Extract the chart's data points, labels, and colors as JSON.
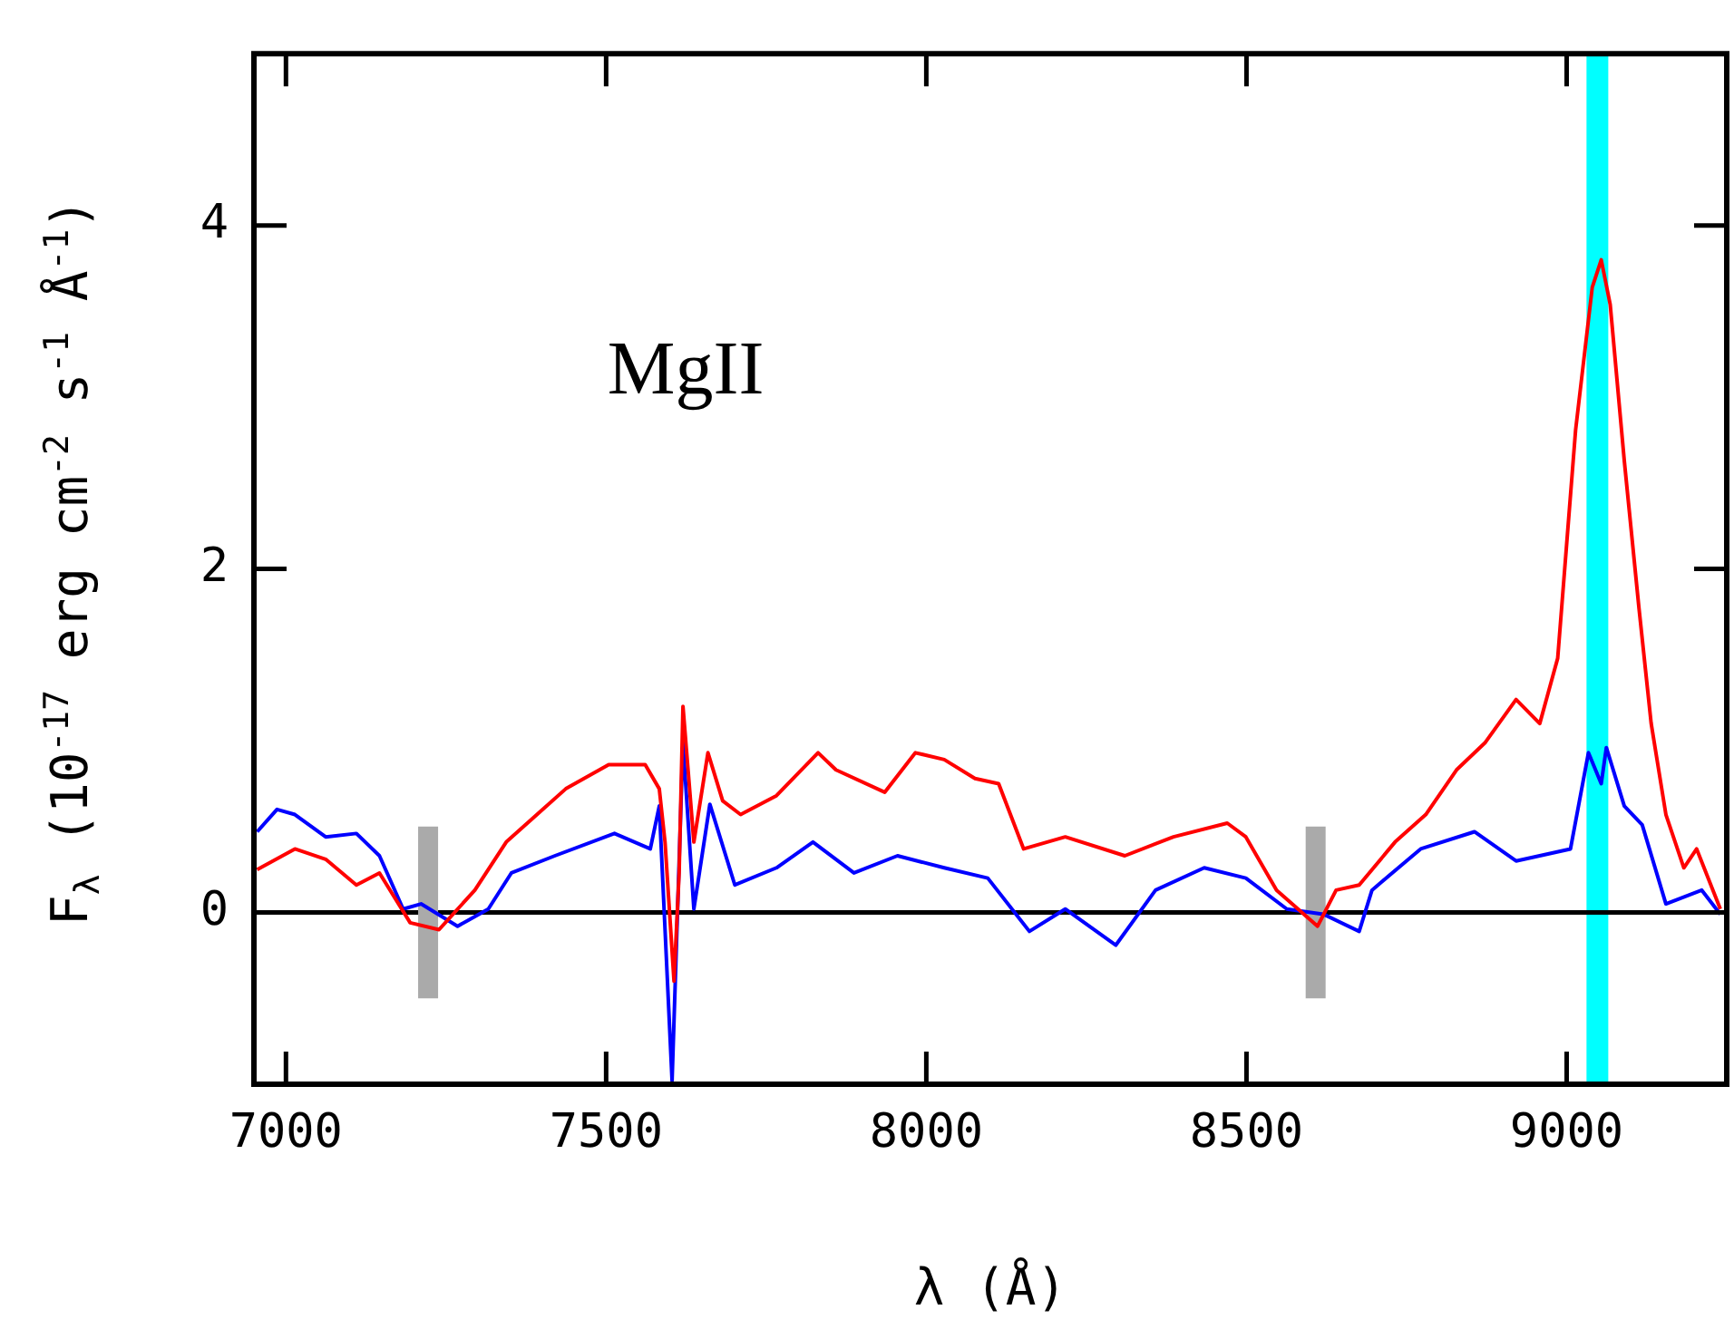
{
  "chart_data": {
    "type": "line",
    "xlabel": "λ (Å)",
    "ylabel": "F$_{λ}$ (10$^{-17}$ erg cm$^{-2}$ s$^{-1}$ Å$^{-1}$)",
    "xlim": [
      6950,
      9250
    ],
    "ylim": [
      -1,
      5
    ],
    "xticks": [
      7000,
      7500,
      8000,
      8500,
      9000
    ],
    "yticks": [
      0,
      2,
      4
    ],
    "grid": false,
    "legend": false,
    "marker": "none",
    "line_style": "solid",
    "annotations": [
      "MgII"
    ],
    "ref_lines": [
      {
        "axis": "y",
        "value": 0,
        "color": "#000000"
      }
    ],
    "bands": [
      {
        "axis": "x",
        "from": 9031,
        "to": 9065,
        "color": "#00ffff"
      }
    ],
    "series": [
      {
        "color": "#ff0000",
        "x": [
          6955,
          7014,
          7062,
          7110,
          7146,
          7194,
          7239,
          7295,
          7344,
          7392,
          7437,
          7504,
          7561,
          7583,
          7592,
          7606,
          7614,
          7620,
          7637,
          7659,
          7682,
          7710,
          7766,
          7831,
          7859,
          7935,
          7983,
          8028,
          8076,
          8113,
          8152,
          8217,
          8310,
          8386,
          8470,
          8499,
          8547,
          8611,
          8640,
          8676,
          8732,
          8780,
          8828,
          8873,
          8921,
          8958,
          8986,
          9014,
          9040,
          9054,
          9068,
          9090,
          9113,
          9132,
          9155,
          9183,
          9203,
          9240
        ],
        "values": [
          0.25,
          0.37,
          0.31,
          0.16,
          0.23,
          -0.06,
          -0.1,
          0.13,
          0.41,
          0.57,
          0.72,
          0.86,
          0.86,
          0.72,
          0.41,
          -0.4,
          0.23,
          1.2,
          0.41,
          0.93,
          0.65,
          0.57,
          0.68,
          0.93,
          0.83,
          0.7,
          0.93,
          0.89,
          0.78,
          0.75,
          0.37,
          0.44,
          0.33,
          0.44,
          0.52,
          0.44,
          0.13,
          -0.08,
          0.13,
          0.16,
          0.41,
          0.57,
          0.83,
          0.99,
          1.24,
          1.1,
          1.48,
          2.81,
          3.64,
          3.8,
          3.54,
          2.63,
          1.77,
          1.1,
          0.57,
          0.26,
          0.37,
          0.02
        ]
      },
      {
        "color": "#0000ff",
        "x": [
          6955,
          6986,
          7014,
          7062,
          7110,
          7146,
          7183,
          7211,
          7268,
          7316,
          7352,
          7420,
          7513,
          7569,
          7583,
          7603,
          7620,
          7637,
          7662,
          7701,
          7766,
          7823,
          7887,
          7955,
          8028,
          8096,
          8161,
          8217,
          8296,
          8358,
          8434,
          8499,
          8563,
          8620,
          8676,
          8696,
          8772,
          8856,
          8921,
          9006,
          9034,
          9054,
          9062,
          9090,
          9118,
          9155,
          9211,
          9240
        ],
        "values": [
          0.47,
          0.6,
          0.57,
          0.44,
          0.46,
          0.33,
          0.02,
          0.05,
          -0.08,
          0.02,
          0.23,
          0.33,
          0.46,
          0.37,
          0.62,
          -0.98,
          0.99,
          0.02,
          0.63,
          0.16,
          0.26,
          0.41,
          0.23,
          0.33,
          0.26,
          0.2,
          -0.11,
          0.02,
          -0.19,
          0.13,
          0.26,
          0.2,
          0.02,
          -0.01,
          -0.11,
          0.13,
          0.37,
          0.47,
          0.3,
          0.37,
          0.93,
          0.75,
          0.96,
          0.62,
          0.51,
          0.05,
          0.13,
          -0.01
        ]
      },
      {
        "color": "#aaaaaa",
        "x": [
          7222,
          7222
        ],
        "values": [
          -0.5,
          0.5
        ]
      },
      {
        "color": "#aaaaaa",
        "x": [
          8608,
          8608
        ],
        "values": [
          -0.5,
          0.5
        ]
      }
    ]
  }
}
